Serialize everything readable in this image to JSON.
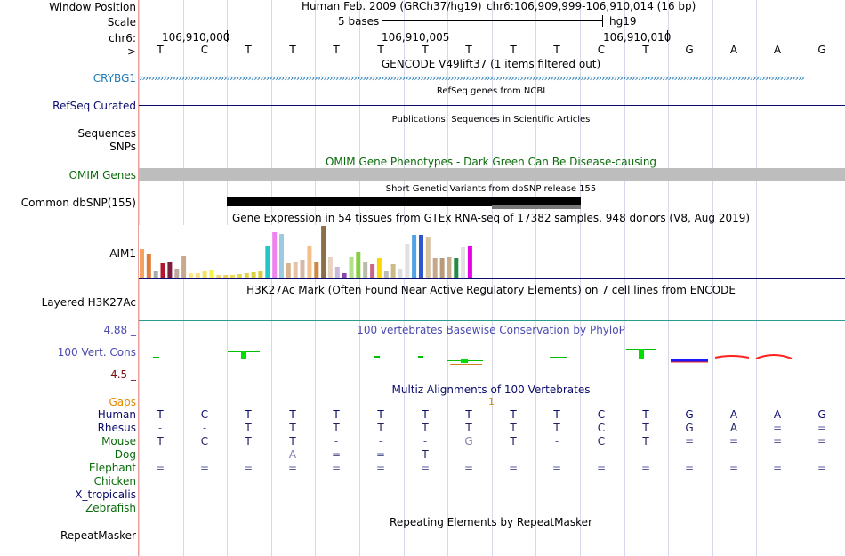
{
  "colors": {
    "label_black": "#000000",
    "label_navy": "#0a0a6e",
    "label_blue": "#1f78b4",
    "label_darkgreen": "#0b6b0b",
    "label_orange": "#e08a00",
    "label_slate": "#4a4ab0",
    "label_darkred": "#7a1010",
    "grid": "#d8d8ec",
    "omim_gray": "#bdbdbd"
  },
  "header": {
    "window_position_label": "Window Position",
    "assembly": "Human Feb. 2009 (GRCh37/hg19)",
    "coords": "chr6:106,909,999-106,910,014 (16 bp)",
    "scale_label": "Scale",
    "scale_bar_text": "5 bases",
    "scale_db": "hg19",
    "chrom_label": "chr6:",
    "pos1": "106,910,000",
    "pos2": "106,910,005",
    "pos3": "106,910,010",
    "strand_label": "--->"
  },
  "sequence": [
    "T",
    "C",
    "T",
    "T",
    "T",
    "T",
    "T",
    "T",
    "T",
    "T",
    "C",
    "T",
    "G",
    "A",
    "A",
    "G"
  ],
  "tracks": {
    "gencode_title": "GENCODE V49lift37 (1 items filtered out)",
    "crybg1_label": "CRYBG1",
    "refseq_title": "RefSeq genes from NCBI",
    "refseq_label": "RefSeq Curated",
    "publications_title": "Publications: Sequences in Scientific Articles",
    "sequences_label": "Sequences",
    "snps_label": "SNPs",
    "omim_title": "OMIM Gene Phenotypes - Dark Green Can Be Disease-causing",
    "omim_label": "OMIM Genes",
    "dbsnp_title": "Short Genetic Variants from dbSNP release 155",
    "dbsnp_label": "Common dbSNP(155)",
    "gtex_title": "Gene Expression in 54 tissues from GTEx RNA-seq of 17382 samples, 948 donors (V8, Aug 2019)",
    "gtex_label": "AIM1",
    "h3k27ac_title": "H3K27Ac Mark (Often Found Near Active Regulatory Elements) on 7 cell lines from ENCODE",
    "h3k27ac_label": "Layered H3K27Ac",
    "phylop_title": "100 vertebrates Basewise Conservation by PhyloP",
    "phylop_max": "4.88 _",
    "phylop_label": "100 Vert. Cons",
    "phylop_min": "-4.5 _",
    "multiz_title": "Multiz Alignments of 100 Vertebrates",
    "gaps_label": "Gaps",
    "gaps_mark": "1",
    "repeatmasker_title": "Repeating Elements by RepeatMasker",
    "repeatmasker_label": "RepeatMasker"
  },
  "gtex_bars": [
    {
      "color": "#f4a261",
      "value": 0.55
    },
    {
      "color": "#e07b39",
      "value": 0.45
    },
    {
      "color": "#aaaaaa",
      "value": 0.12
    },
    {
      "color": "#b2182b",
      "value": 0.27
    },
    {
      "color": "#7a1f3d",
      "value": 0.3
    },
    {
      "color": "#bfa8a0",
      "value": 0.18
    },
    {
      "color": "#c9a98c",
      "value": 0.42
    },
    {
      "color": "#ffe57f",
      "value": 0.08
    },
    {
      "color": "#f7e07a",
      "value": 0.08
    },
    {
      "color": "#f2e35c",
      "value": 0.12
    },
    {
      "color": "#f7f24a",
      "value": 0.14
    },
    {
      "color": "#f5d76e",
      "value": 0.06
    },
    {
      "color": "#f0d060",
      "value": 0.06
    },
    {
      "color": "#eedd55",
      "value": 0.06
    },
    {
      "color": "#e8d84c",
      "value": 0.07
    },
    {
      "color": "#e5d23f",
      "value": 0.08
    },
    {
      "color": "#ddd040",
      "value": 0.1
    },
    {
      "color": "#d8cc3a",
      "value": 0.12
    },
    {
      "color": "#22c7c7",
      "value": 0.62
    },
    {
      "color": "#ee82ee",
      "value": 0.88
    },
    {
      "color": "#9ecae1",
      "value": 0.85
    },
    {
      "color": "#d9b38c",
      "value": 0.27
    },
    {
      "color": "#e6c3a8",
      "value": 0.3
    },
    {
      "color": "#d6b8a8",
      "value": 0.34
    },
    {
      "color": "#f4c089",
      "value": 0.62
    },
    {
      "color": "#cc8844",
      "value": 0.3
    },
    {
      "color": "#8b6f47",
      "value": 1.0
    },
    {
      "color": "#e8d3c0",
      "value": 0.4
    },
    {
      "color": "#c9b8d8",
      "value": 0.2
    },
    {
      "color": "#8e44ad",
      "value": 0.08
    },
    {
      "color": "#b2df8a",
      "value": 0.4
    },
    {
      "color": "#88cc44",
      "value": 0.5
    },
    {
      "color": "#bbbbaa",
      "value": 0.3
    },
    {
      "color": "#cc6688",
      "value": 0.25
    },
    {
      "color": "#ffd700",
      "value": 0.38
    },
    {
      "color": "#bbbbbb",
      "value": 0.12
    },
    {
      "color": "#ccbb88",
      "value": 0.25
    },
    {
      "color": "#dddddd",
      "value": 0.18
    },
    {
      "color": "#e0e0e0",
      "value": 0.65
    },
    {
      "color": "#4fa3e8",
      "value": 0.82
    },
    {
      "color": "#3355cc",
      "value": 0.82
    },
    {
      "color": "#d9c3a0",
      "value": 0.8
    },
    {
      "color": "#c7a78a",
      "value": 0.38
    },
    {
      "color": "#b89a7a",
      "value": 0.38
    },
    {
      "color": "#c8ad8a",
      "value": 0.4
    },
    {
      "color": "#228b44",
      "value": 0.38
    },
    {
      "color": "#e0e0e0",
      "value": 0.58
    },
    {
      "color": "#e600e6",
      "value": 0.6
    }
  ],
  "multiz": {
    "species": [
      {
        "name": "Human",
        "color": "#0a0a6e",
        "bases": [
          "T",
          "C",
          "T",
          "T",
          "T",
          "T",
          "T",
          "T",
          "T",
          "T",
          "C",
          "T",
          "G",
          "A",
          "A",
          "G"
        ]
      },
      {
        "name": "Rhesus",
        "color": "#0a0a6e",
        "bases": [
          "-",
          "-",
          "T",
          "T",
          "T",
          "T",
          "T",
          "T",
          "T",
          "T",
          "C",
          "T",
          "G",
          "A",
          "=",
          "="
        ]
      },
      {
        "name": "Mouse",
        "color": "#0b6b0b",
        "bases": [
          "T",
          "C",
          "T",
          "T",
          "-",
          "-",
          "-",
          "G",
          "T",
          "-",
          "C",
          "T",
          "=",
          "=",
          "=",
          "="
        ]
      },
      {
        "name": "Dog",
        "color": "#0b6b0b",
        "bases": [
          "-",
          "-",
          "-",
          "A",
          "=",
          "=",
          "T",
          "-",
          "-",
          "-",
          "-",
          "-",
          "-",
          "-",
          "-",
          "-"
        ]
      },
      {
        "name": "Elephant",
        "color": "#0b6b0b",
        "bases": [
          "=",
          "=",
          "=",
          "=",
          "=",
          "=",
          "=",
          "=",
          "=",
          "=",
          "=",
          "=",
          "=",
          "=",
          "=",
          "="
        ]
      },
      {
        "name": "Chicken",
        "color": "#0b6b0b",
        "bases": []
      },
      {
        "name": "X_tropicalis",
        "color": "#0a0a6e",
        "bases": []
      },
      {
        "name": "Zebrafish",
        "color": "#0b6b0b",
        "bases": []
      }
    ]
  }
}
